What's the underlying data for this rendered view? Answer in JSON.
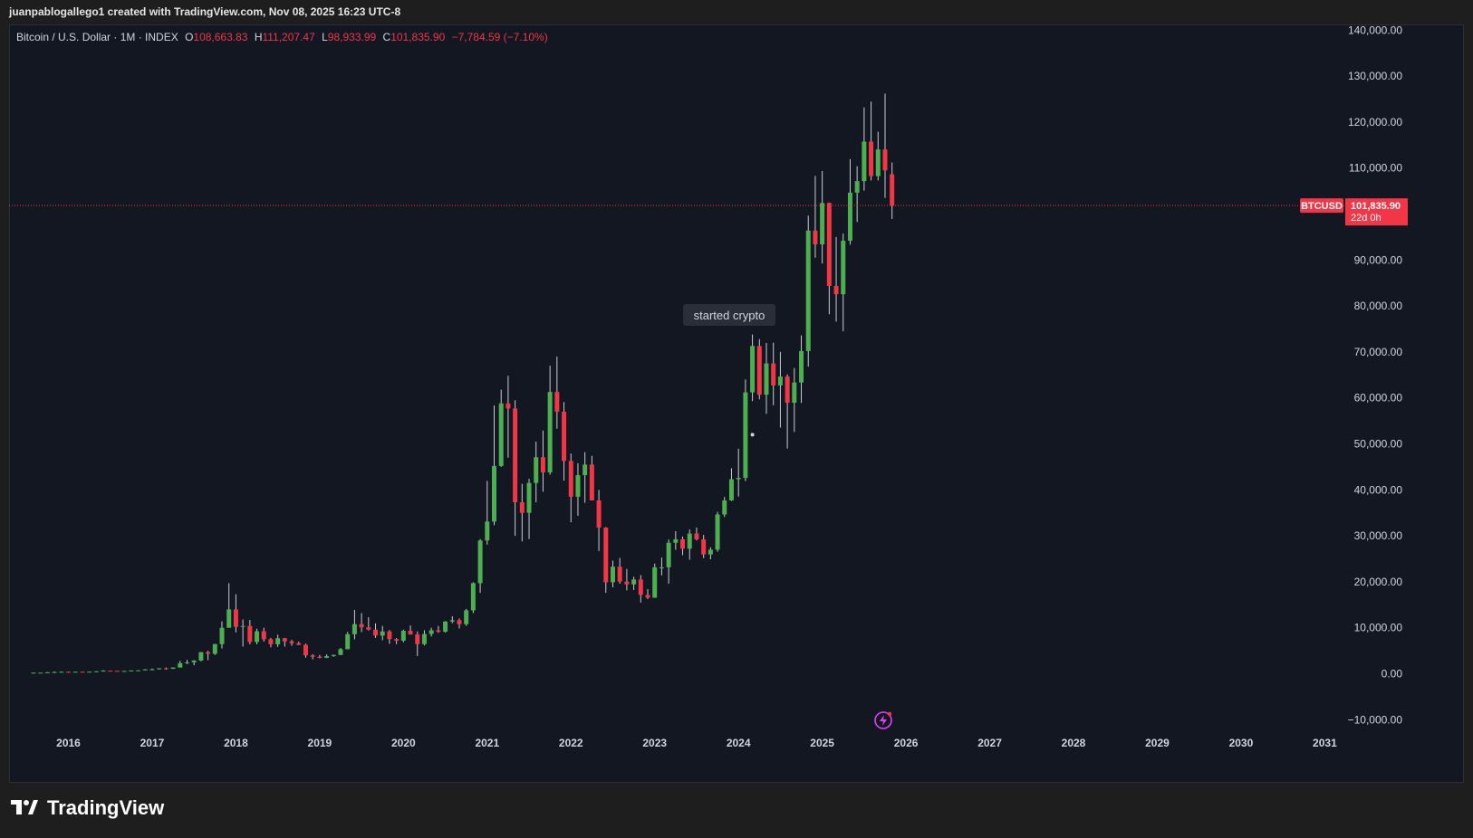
{
  "header": {
    "caption": "juanpablogallego1 created with TradingView.com, Nov 08, 2025 16:23 UTC-8"
  },
  "legend": {
    "symbol": "Bitcoin / U.S. Dollar · 1M · INDEX",
    "o_label": "O",
    "o_value": "108,663.83",
    "h_label": "H",
    "h_value": "111,207.47",
    "l_label": "L",
    "l_value": "98,933.99",
    "c_label": "C",
    "c_value": "101,835.90",
    "change": "−7,784.59 (−7.10%)"
  },
  "price_tag": {
    "symbol": "BTCUSD",
    "price": "101,835.90",
    "countdown": "22d 0h"
  },
  "annotation": {
    "text": "started crypto"
  },
  "footer": {
    "brand": "TradingView",
    "logo_icon": "tradingview-logo-icon"
  },
  "colors": {
    "up": "#4caf50",
    "down": "#f23645",
    "background": "#131722",
    "axis_text": "#d1d4dc"
  },
  "chart_data": {
    "type": "candlestick",
    "interval": "1M",
    "ylim": [
      -10000,
      140000
    ],
    "xlim": [
      "2015-08",
      "2031-05"
    ],
    "y_ticks": [
      "140,000.00",
      "130,000.00",
      "120,000.00",
      "110,000.00",
      "100,000.00",
      "90,000.00",
      "80,000.00",
      "70,000.00",
      "60,000.00",
      "50,000.00",
      "40,000.00",
      "30,000.00",
      "20,000.00",
      "10,000.00",
      "0.00",
      "−10,000.00"
    ],
    "y_tick_values": [
      140000,
      130000,
      120000,
      110000,
      100000,
      90000,
      80000,
      70000,
      60000,
      50000,
      40000,
      30000,
      20000,
      10000,
      0,
      -10000
    ],
    "x_ticks": [
      "2016",
      "2017",
      "2018",
      "2019",
      "2020",
      "2021",
      "2022",
      "2023",
      "2024",
      "2025",
      "2026",
      "2027",
      "2028",
      "2029",
      "2030",
      "2031"
    ],
    "last_price": 101835.9,
    "annotation_point": {
      "date": "2024-03",
      "price": 52000
    },
    "candles": [
      [
        "2015-08",
        230,
        265,
        200,
        230
      ],
      [
        "2015-09",
        230,
        245,
        225,
        236
      ],
      [
        "2015-10",
        236,
        330,
        235,
        314
      ],
      [
        "2015-11",
        314,
        500,
        300,
        377
      ],
      [
        "2015-12",
        377,
        470,
        350,
        430
      ],
      [
        "2016-01",
        430,
        460,
        350,
        368
      ],
      [
        "2016-02",
        368,
        440,
        365,
        437
      ],
      [
        "2016-03",
        437,
        440,
        400,
        416
      ],
      [
        "2016-04",
        416,
        470,
        410,
        448
      ],
      [
        "2016-05",
        448,
        550,
        440,
        531
      ],
      [
        "2016-06",
        531,
        780,
        520,
        673
      ],
      [
        "2016-07",
        673,
        700,
        600,
        624
      ],
      [
        "2016-08",
        624,
        630,
        470,
        575
      ],
      [
        "2016-09",
        575,
        620,
        570,
        609
      ],
      [
        "2016-10",
        609,
        730,
        600,
        700
      ],
      [
        "2016-11",
        700,
        760,
        680,
        742
      ],
      [
        "2016-12",
        742,
        980,
        740,
        963
      ],
      [
        "2017-01",
        963,
        1150,
        750,
        970
      ],
      [
        "2017-02",
        970,
        1200,
        920,
        1190
      ],
      [
        "2017-03",
        1190,
        1350,
        890,
        1080
      ],
      [
        "2017-04",
        1080,
        1400,
        1060,
        1350
      ],
      [
        "2017-05",
        1350,
        2800,
        1350,
        2300
      ],
      [
        "2017-06",
        2300,
        3000,
        2100,
        2480
      ],
      [
        "2017-07",
        2480,
        2950,
        1850,
        2875
      ],
      [
        "2017-08",
        2875,
        4700,
        2700,
        4700
      ],
      [
        "2017-09",
        4700,
        5000,
        2950,
        4340
      ],
      [
        "2017-10",
        4340,
        6500,
        4100,
        6450
      ],
      [
        "2017-11",
        6450,
        11400,
        5500,
        10000
      ],
      [
        "2017-12",
        10000,
        19700,
        10000,
        14000
      ],
      [
        "2018-01",
        14000,
        17300,
        9000,
        10200
      ],
      [
        "2018-02",
        10200,
        11800,
        5900,
        10400
      ],
      [
        "2018-03",
        10400,
        11700,
        6400,
        6900
      ],
      [
        "2018-04",
        6900,
        9800,
        6400,
        9250
      ],
      [
        "2018-05",
        9250,
        10000,
        7000,
        7500
      ],
      [
        "2018-06",
        7500,
        7800,
        5750,
        6400
      ],
      [
        "2018-07",
        6400,
        8500,
        5850,
        7730
      ],
      [
        "2018-08",
        7730,
        7800,
        5900,
        7040
      ],
      [
        "2018-09",
        7040,
        7400,
        6100,
        6630
      ],
      [
        "2018-10",
        6630,
        7000,
        6200,
        6300
      ],
      [
        "2018-11",
        6300,
        6550,
        3500,
        4000
      ],
      [
        "2018-12",
        4000,
        4250,
        3150,
        3700
      ],
      [
        "2019-01",
        3700,
        4100,
        3350,
        3450
      ],
      [
        "2019-02",
        3450,
        4200,
        3400,
        3830
      ],
      [
        "2019-03",
        3830,
        4150,
        3700,
        4100
      ],
      [
        "2019-04",
        4100,
        5600,
        4050,
        5350
      ],
      [
        "2019-05",
        5350,
        9100,
        5300,
        8600
      ],
      [
        "2019-06",
        8600,
        13900,
        7500,
        10800
      ],
      [
        "2019-07",
        10800,
        13200,
        9050,
        10100
      ],
      [
        "2019-08",
        10100,
        12300,
        9400,
        9600
      ],
      [
        "2019-09",
        9600,
        10950,
        7800,
        8300
      ],
      [
        "2019-10",
        8300,
        10400,
        7300,
        9200
      ],
      [
        "2019-11",
        9200,
        9500,
        6500,
        7550
      ],
      [
        "2019-12",
        7550,
        7750,
        6430,
        7200
      ],
      [
        "2020-01",
        7200,
        9600,
        6850,
        9350
      ],
      [
        "2020-02",
        9350,
        10500,
        8500,
        8550
      ],
      [
        "2020-03",
        8550,
        9200,
        3850,
        6450
      ],
      [
        "2020-04",
        6450,
        9450,
        6150,
        8650
      ],
      [
        "2020-05",
        8650,
        10000,
        8100,
        9450
      ],
      [
        "2020-06",
        9450,
        10400,
        8900,
        9150
      ],
      [
        "2020-07",
        9150,
        11450,
        8950,
        11350
      ],
      [
        "2020-08",
        11350,
        12500,
        11000,
        11650
      ],
      [
        "2020-09",
        11650,
        12050,
        9850,
        10780
      ],
      [
        "2020-10",
        10780,
        14100,
        10400,
        13800
      ],
      [
        "2020-11",
        13800,
        19900,
        13200,
        19700
      ],
      [
        "2020-12",
        19700,
        29300,
        17600,
        29000
      ],
      [
        "2021-01",
        29000,
        41950,
        28100,
        33100
      ],
      [
        "2021-02",
        33100,
        58350,
        32300,
        45200
      ],
      [
        "2021-03",
        45200,
        61800,
        45000,
        58800
      ],
      [
        "2021-04",
        58800,
        64800,
        47000,
        57700
      ],
      [
        "2021-05",
        57700,
        59500,
        30000,
        37300
      ],
      [
        "2021-06",
        37300,
        41300,
        28800,
        35000
      ],
      [
        "2021-07",
        35000,
        42400,
        29300,
        41500
      ],
      [
        "2021-08",
        41500,
        50500,
        37300,
        47100
      ],
      [
        "2021-09",
        47100,
        52900,
        39600,
        43800
      ],
      [
        "2021-10",
        43800,
        67000,
        43300,
        61300
      ],
      [
        "2021-11",
        61300,
        69000,
        53300,
        57000
      ],
      [
        "2021-12",
        57000,
        59100,
        42000,
        46300
      ],
      [
        "2022-01",
        46300,
        47900,
        32950,
        38500
      ],
      [
        "2022-02",
        38500,
        45800,
        34350,
        43200
      ],
      [
        "2022-03",
        43200,
        48200,
        37200,
        45500
      ],
      [
        "2022-04",
        45500,
        47400,
        37700,
        37700
      ],
      [
        "2022-05",
        37700,
        40000,
        26700,
        31800
      ],
      [
        "2022-06",
        31800,
        31900,
        17600,
        19900
      ],
      [
        "2022-07",
        19900,
        24600,
        18800,
        23300
      ],
      [
        "2022-08",
        23300,
        25200,
        19600,
        20050
      ],
      [
        "2022-09",
        20050,
        22800,
        18150,
        19430
      ],
      [
        "2022-10",
        19430,
        21100,
        18200,
        20500
      ],
      [
        "2022-11",
        20500,
        21450,
        15480,
        17150
      ],
      [
        "2022-12",
        17150,
        18400,
        16250,
        16550
      ],
      [
        "2023-01",
        16550,
        23950,
        16500,
        23150
      ],
      [
        "2023-02",
        23150,
        25250,
        21400,
        23150
      ],
      [
        "2023-03",
        23150,
        29200,
        19600,
        28500
      ],
      [
        "2023-04",
        28500,
        31000,
        26950,
        29250
      ],
      [
        "2023-05",
        29250,
        29850,
        25800,
        27200
      ],
      [
        "2023-06",
        27200,
        31400,
        24800,
        30500
      ],
      [
        "2023-07",
        30500,
        31800,
        29000,
        29250
      ],
      [
        "2023-08",
        29250,
        30200,
        25150,
        25950
      ],
      [
        "2023-09",
        25950,
        27500,
        24900,
        27000
      ],
      [
        "2023-10",
        27000,
        35200,
        26550,
        34650
      ],
      [
        "2023-11",
        34650,
        38450,
        34100,
        37700
      ],
      [
        "2023-12",
        37700,
        44700,
        37600,
        42300
      ],
      [
        "2024-01",
        42300,
        48950,
        38550,
        42600
      ],
      [
        "2024-02",
        42600,
        64000,
        41900,
        61200
      ],
      [
        "2024-03",
        61200,
        73800,
        59300,
        71300
      ],
      [
        "2024-04",
        71300,
        72800,
        59700,
        60700
      ],
      [
        "2024-05",
        60700,
        71950,
        56550,
        67500
      ],
      [
        "2024-06",
        67500,
        72000,
        58400,
        62700
      ],
      [
        "2024-07",
        62700,
        70000,
        53550,
        64650
      ],
      [
        "2024-08",
        64650,
        65100,
        49000,
        58950
      ],
      [
        "2024-09",
        58950,
        66500,
        52600,
        63350
      ],
      [
        "2024-10",
        63350,
        73600,
        58900,
        70200
      ],
      [
        "2024-11",
        70200,
        99650,
        66800,
        96400
      ],
      [
        "2024-12",
        96400,
        108300,
        90500,
        93400
      ],
      [
        "2025-01",
        93400,
        109350,
        89250,
        102400
      ],
      [
        "2025-02",
        102400,
        102500,
        78200,
        84350
      ],
      [
        "2025-03",
        84350,
        95000,
        76600,
        82550
      ],
      [
        "2025-04",
        82550,
        95750,
        74500,
        94200
      ],
      [
        "2025-05",
        94200,
        111950,
        93350,
        104650
      ],
      [
        "2025-06",
        104650,
        110400,
        98250,
        107150
      ],
      [
        "2025-07",
        107150,
        123200,
        105100,
        115750
      ],
      [
        "2025-08",
        115750,
        124450,
        107300,
        108250
      ],
      [
        "2025-09",
        108250,
        117900,
        107300,
        114050
      ],
      [
        "2025-10",
        114050,
        126200,
        103500,
        109500
      ],
      [
        "2025-11",
        108663.83,
        111207.47,
        98933.99,
        101835.9
      ]
    ]
  }
}
